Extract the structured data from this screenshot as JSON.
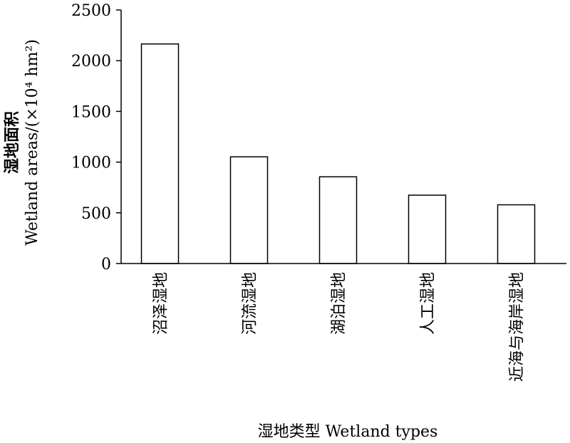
{
  "chart_data": {
    "type": "bar",
    "categories": [
      "沼泽湿地",
      "河流湿地",
      "湖泊湿地",
      "人工湿地",
      "近海与海岸湿地"
    ],
    "values": [
      2165,
      1052,
      855,
      674,
      579
    ],
    "ylim": [
      0,
      2500
    ],
    "yticks": [
      0,
      500,
      1000,
      1500,
      2000,
      2500
    ],
    "ylabel_cn": "湿地面积",
    "ylabel_en": "Wetland areas/(×10⁴ hm²)",
    "xlabel": "湿地类型 Wetland types",
    "grid": false,
    "legend": false
  }
}
